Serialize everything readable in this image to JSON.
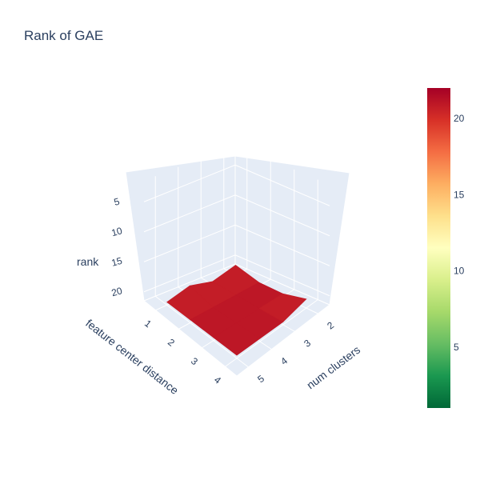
{
  "chart_data": {
    "type": "surface",
    "title": "Rank of GAE",
    "x_axis": {
      "label": "num clusters",
      "ticks": [
        2,
        3,
        4,
        5
      ]
    },
    "y_axis": {
      "label": "feature center distance",
      "ticks": [
        1,
        2,
        3,
        4
      ]
    },
    "z_axis": {
      "label": "rank",
      "ticks": [
        5,
        10,
        15,
        20
      ],
      "reversed": true
    },
    "z": [
      [
        20,
        21,
        20,
        21
      ],
      [
        21,
        21,
        21,
        21
      ],
      [
        21,
        21,
        21,
        21
      ],
      [
        20,
        21,
        21,
        21
      ]
    ],
    "colorscale": "RdYlGn (reversed)",
    "colorbar": {
      "ticks": [
        5,
        10,
        15,
        20
      ],
      "min": 1,
      "max": 22
    },
    "colors": {
      "low": "#006837",
      "high": "#a50026",
      "scene_background": "#e5ecf6",
      "text": "#2a3f5f"
    }
  }
}
